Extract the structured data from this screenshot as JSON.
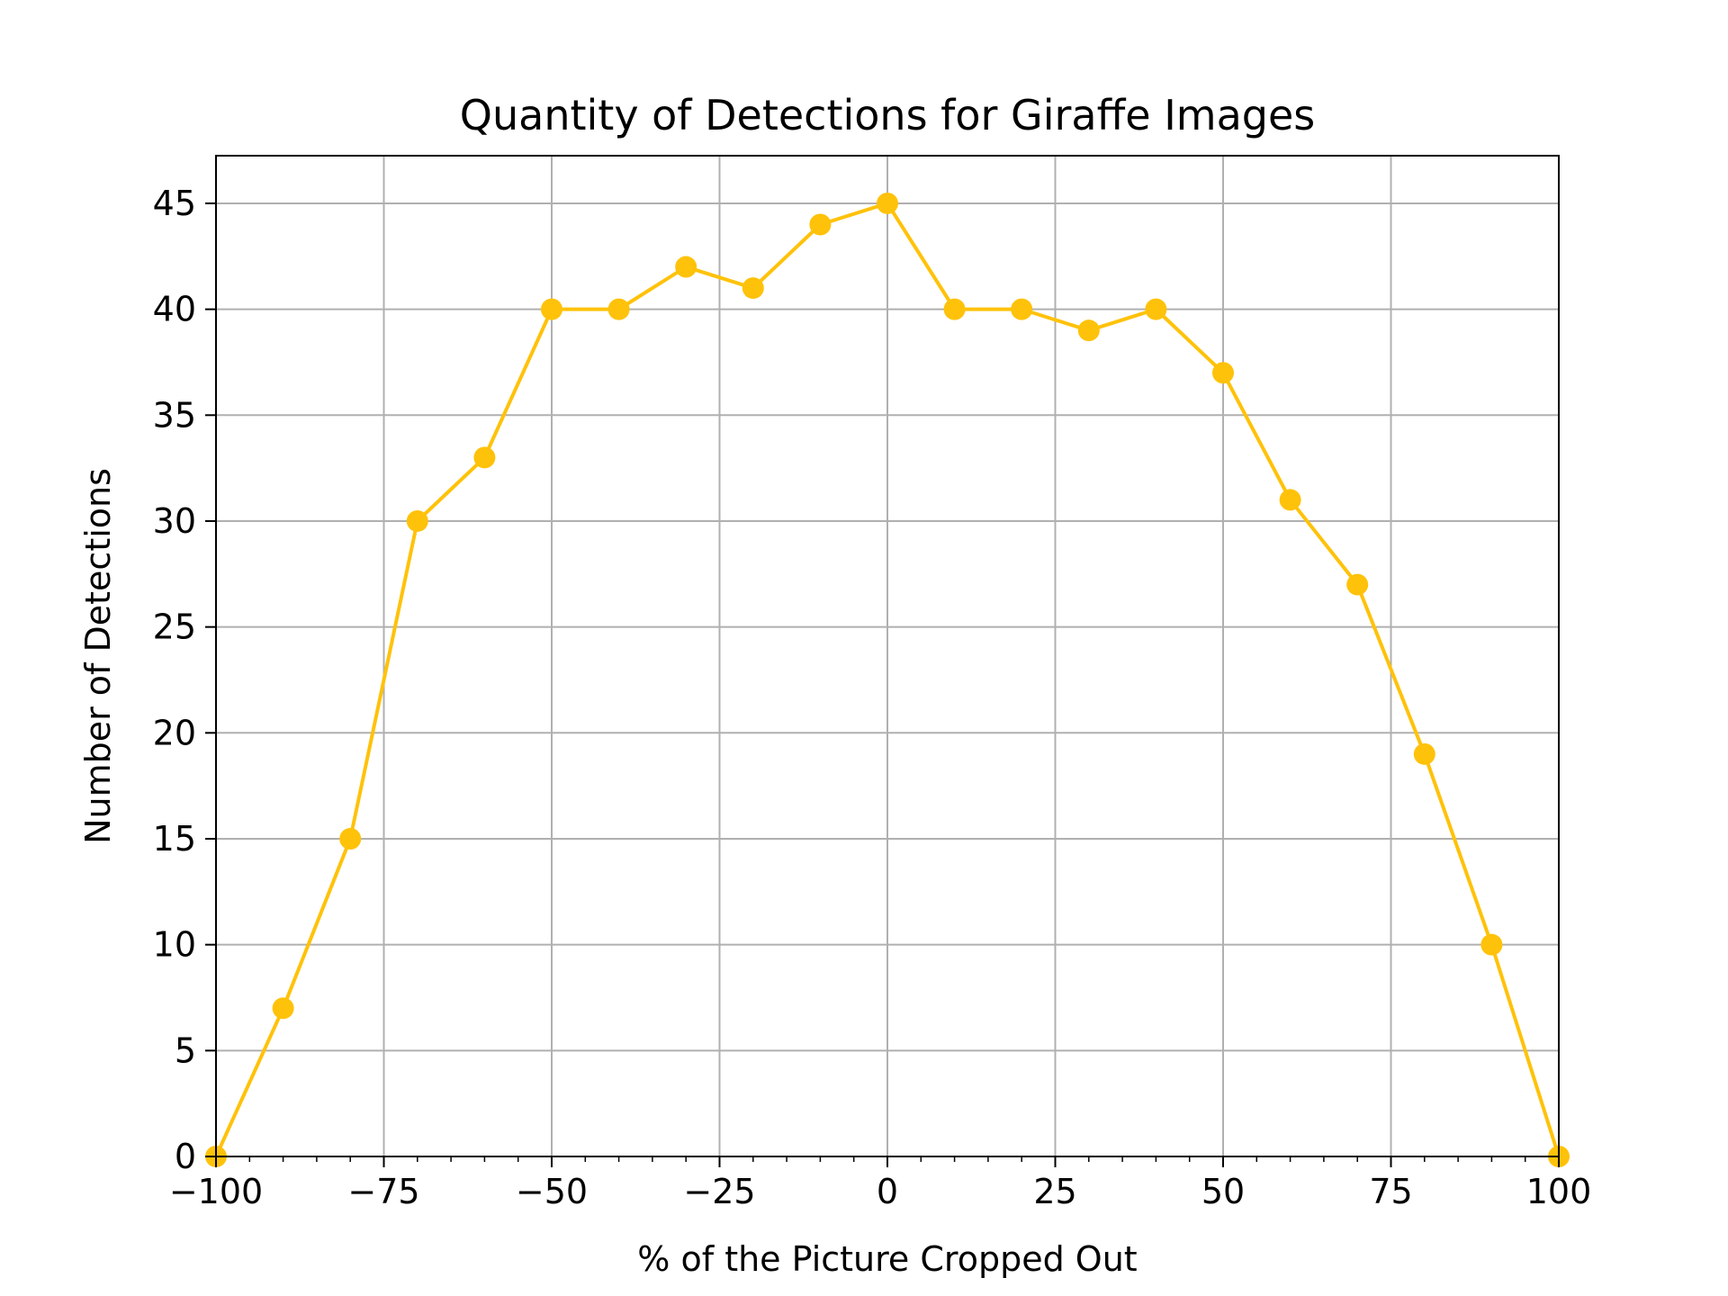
{
  "chart_data": {
    "type": "line",
    "title": "Quantity of Detections for Giraffe Images",
    "xlabel": "% of the Picture Cropped Out",
    "ylabel": "Number of Detections",
    "xlim": [
      -100,
      100
    ],
    "ylim": [
      0,
      47.25
    ],
    "xticks": [
      -100,
      -75,
      -50,
      -25,
      0,
      25,
      50,
      75,
      100
    ],
    "xtick_labels": [
      "−100",
      "−75",
      "−50",
      "−25",
      "0",
      "25",
      "50",
      "75",
      "100"
    ],
    "yticks": [
      0,
      5,
      10,
      15,
      20,
      25,
      30,
      35,
      40,
      45
    ],
    "ytick_labels": [
      "0",
      "5",
      "10",
      "15",
      "20",
      "25",
      "30",
      "35",
      "40",
      "45"
    ],
    "grid": true,
    "minor_xticks_step": 5,
    "series": [
      {
        "color": "#FFC20A",
        "marker": "circle",
        "x": [
          -100,
          -90,
          -80,
          -70,
          -60,
          -50,
          -40,
          -30,
          -20,
          -10,
          0,
          10,
          20,
          30,
          40,
          50,
          60,
          70,
          80,
          90,
          100
        ],
        "y": [
          0,
          7,
          15,
          30,
          33,
          40,
          40,
          42,
          41,
          44,
          45,
          40,
          40,
          39,
          40,
          37,
          31,
          27,
          19,
          10,
          0
        ]
      }
    ]
  }
}
